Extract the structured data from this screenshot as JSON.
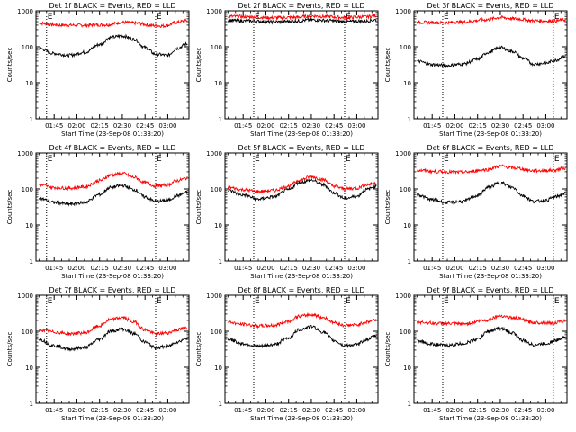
{
  "figure": {
    "xlabel": "Start Time (23-Sep-08 01:33:20)",
    "ylabel": "Counts/sec"
  },
  "chart_data": [
    {
      "type": "line",
      "title": "Det 1f BLACK = Events, RED = LLD",
      "xlabel": "Start Time (23-Sep-08 01:33:20)",
      "ylabel": "Counts/sec",
      "y_scale": "log",
      "ylim": [
        1,
        1000
      ],
      "y_ticks": [
        1,
        10,
        100,
        1000
      ],
      "x_tick_labels": [
        "01:45",
        "02:00",
        "02:15",
        "02:30",
        "02:45",
        "03:00"
      ],
      "x_tick_minutes": [
        105,
        120,
        135,
        150,
        165,
        180
      ],
      "xlim_minutes": [
        93,
        194
      ],
      "vlines_minutes": [
        100,
        172
      ],
      "corner_labels": [
        "E",
        "E"
      ],
      "grid": false,
      "series": [
        {
          "color": "#ff0000",
          "x": [
            95,
            110,
            125,
            140,
            150,
            160,
            170,
            178,
            186,
            193
          ],
          "values": [
            450,
            400,
            400,
            410,
            480,
            450,
            390,
            380,
            480,
            540
          ]
        },
        {
          "color": "#000000",
          "x": [
            95,
            105,
            115,
            125,
            135,
            142,
            150,
            158,
            165,
            172,
            180,
            186,
            193
          ],
          "values": [
            90,
            65,
            58,
            70,
            115,
            180,
            200,
            160,
            95,
            62,
            58,
            90,
            120
          ]
        }
      ]
    },
    {
      "type": "line",
      "title": "Det 2f BLACK = Events, RED = LLD",
      "xlabel": "Start Time (23-Sep-08 01:33:20)",
      "ylabel": "Counts/sec",
      "y_scale": "log",
      "ylim": [
        1,
        1000
      ],
      "y_ticks": [
        1,
        10,
        100,
        1000
      ],
      "x_tick_labels": [
        "01:45",
        "02:00",
        "02:15",
        "02:30",
        "02:45",
        "03:00"
      ],
      "x_tick_minutes": [
        105,
        120,
        135,
        150,
        165,
        180
      ],
      "xlim_minutes": [
        93,
        194
      ],
      "vlines_minutes": [
        112,
        172
      ],
      "corner_labels": [
        "E",
        "E"
      ],
      "grid": false,
      "series": [
        {
          "color": "#ff0000",
          "x": [
            95,
            110,
            125,
            140,
            150,
            160,
            172,
            185,
            193
          ],
          "values": [
            700,
            680,
            640,
            660,
            720,
            690,
            650,
            680,
            730
          ]
        },
        {
          "color": "#000000",
          "x": [
            95,
            110,
            125,
            140,
            150,
            160,
            172,
            185,
            193
          ],
          "values": [
            540,
            520,
            490,
            520,
            560,
            540,
            500,
            520,
            560
          ]
        }
      ]
    },
    {
      "type": "line",
      "title": "Det 3f BLACK = Events, RED = LLD",
      "xlabel": "Start Time (23-Sep-08 01:33:20)",
      "ylabel": "Counts/sec",
      "y_scale": "log",
      "ylim": [
        1,
        1000
      ],
      "y_ticks": [
        1,
        10,
        100,
        1000
      ],
      "x_tick_labels": [
        "01:45",
        "02:00",
        "02:15",
        "02:30",
        "02:45",
        "03:00"
      ],
      "x_tick_minutes": [
        105,
        120,
        135,
        150,
        165,
        180
      ],
      "xlim_minutes": [
        93,
        194
      ],
      "vlines_minutes": [
        112,
        185
      ],
      "corner_labels": [
        "E",
        "E"
      ],
      "grid": false,
      "series": [
        {
          "color": "#ff0000",
          "x": [
            95,
            110,
            125,
            140,
            150,
            160,
            172,
            185,
            193
          ],
          "values": [
            480,
            470,
            490,
            560,
            650,
            600,
            530,
            520,
            560
          ]
        },
        {
          "color": "#000000",
          "x": [
            95,
            105,
            115,
            125,
            135,
            142,
            150,
            158,
            165,
            172,
            180,
            186,
            193
          ],
          "values": [
            40,
            32,
            30,
            33,
            45,
            70,
            95,
            75,
            48,
            33,
            35,
            42,
            55
          ]
        }
      ]
    },
    {
      "type": "line",
      "title": "Det 4f BLACK = Events, RED = LLD",
      "xlabel": "Start Time (23-Sep-08 01:33:20)",
      "ylabel": "Counts/sec",
      "y_scale": "log",
      "ylim": [
        1,
        1000
      ],
      "y_ticks": [
        1,
        10,
        100,
        1000
      ],
      "x_tick_labels": [
        "01:45",
        "02:00",
        "02:15",
        "02:30",
        "02:45",
        "03:00"
      ],
      "x_tick_minutes": [
        105,
        120,
        135,
        150,
        165,
        180
      ],
      "xlim_minutes": [
        93,
        194
      ],
      "vlines_minutes": [
        100,
        172
      ],
      "corner_labels": [
        "E",
        "E"
      ],
      "grid": false,
      "series": [
        {
          "color": "#ff0000",
          "x": [
            95,
            105,
            115,
            125,
            135,
            142,
            150,
            158,
            165,
            172,
            180,
            186,
            193
          ],
          "values": [
            130,
            110,
            105,
            115,
            170,
            240,
            270,
            210,
            150,
            120,
            130,
            170,
            200
          ]
        },
        {
          "color": "#000000",
          "x": [
            95,
            105,
            115,
            125,
            135,
            142,
            150,
            158,
            165,
            172,
            180,
            186,
            193
          ],
          "values": [
            55,
            42,
            38,
            42,
            70,
            110,
            125,
            95,
            60,
            45,
            48,
            65,
            80
          ]
        }
      ]
    },
    {
      "type": "line",
      "title": "Det 5f BLACK = Events, RED = LLD",
      "xlabel": "Start Time (23-Sep-08 01:33:20)",
      "ylabel": "Counts/sec",
      "y_scale": "log",
      "ylim": [
        1,
        1000
      ],
      "y_ticks": [
        1,
        10,
        100,
        1000
      ],
      "x_tick_labels": [
        "01:45",
        "02:00",
        "02:15",
        "02:30",
        "02:45",
        "03:00"
      ],
      "x_tick_minutes": [
        105,
        120,
        135,
        150,
        165,
        180
      ],
      "xlim_minutes": [
        93,
        194
      ],
      "vlines_minutes": [
        112,
        172
      ],
      "corner_labels": [
        "E",
        "E"
      ],
      "grid": false,
      "series": [
        {
          "color": "#ff0000",
          "x": [
            95,
            105,
            115,
            125,
            135,
            142,
            150,
            158,
            165,
            172,
            180,
            186,
            193
          ],
          "values": [
            110,
            95,
            85,
            90,
            120,
            175,
            220,
            180,
            120,
            100,
            105,
            130,
            150
          ]
        },
        {
          "color": "#000000",
          "x": [
            95,
            105,
            115,
            125,
            135,
            142,
            150,
            158,
            165,
            172,
            180,
            186,
            193
          ],
          "values": [
            90,
            68,
            52,
            60,
            95,
            150,
            175,
            130,
            78,
            55,
            62,
            95,
            120
          ]
        }
      ]
    },
    {
      "type": "line",
      "title": "Det 6f BLACK = Events, RED = LLD",
      "xlabel": "Start Time (23-Sep-08 01:33:20)",
      "ylabel": "Counts/sec",
      "y_scale": "log",
      "ylim": [
        1,
        1000
      ],
      "y_ticks": [
        1,
        10,
        100,
        1000
      ],
      "x_tick_labels": [
        "01:45",
        "02:00",
        "02:15",
        "02:30",
        "02:45",
        "03:00"
      ],
      "x_tick_minutes": [
        105,
        120,
        135,
        150,
        165,
        180
      ],
      "xlim_minutes": [
        93,
        194
      ],
      "vlines_minutes": [
        112,
        185
      ],
      "corner_labels": [
        "E",
        "E"
      ],
      "grid": false,
      "series": [
        {
          "color": "#ff0000",
          "x": [
            95,
            110,
            125,
            140,
            150,
            160,
            172,
            185,
            193
          ],
          "values": [
            330,
            300,
            290,
            340,
            430,
            380,
            320,
            330,
            380
          ]
        },
        {
          "color": "#000000",
          "x": [
            95,
            105,
            115,
            125,
            135,
            142,
            150,
            158,
            165,
            172,
            180,
            186,
            193
          ],
          "values": [
            70,
            50,
            42,
            45,
            65,
            110,
            150,
            110,
            65,
            45,
            48,
            60,
            75
          ]
        }
      ]
    },
    {
      "type": "line",
      "title": "Det 7f BLACK = Events, RED = LLD",
      "xlabel": "Start Time (23-Sep-08 01:33:20)",
      "ylabel": "Counts/sec",
      "y_scale": "log",
      "ylim": [
        1,
        1000
      ],
      "y_ticks": [
        1,
        10,
        100,
        1000
      ],
      "x_tick_labels": [
        "01:45",
        "02:00",
        "02:15",
        "02:30",
        "02:45",
        "03:00"
      ],
      "x_tick_minutes": [
        105,
        120,
        135,
        150,
        165,
        180
      ],
      "xlim_minutes": [
        93,
        194
      ],
      "vlines_minutes": [
        100,
        172
      ],
      "corner_labels": [
        "E",
        "E"
      ],
      "grid": false,
      "series": [
        {
          "color": "#ff0000",
          "x": [
            95,
            105,
            115,
            125,
            135,
            142,
            150,
            158,
            165,
            172,
            180,
            186,
            193
          ],
          "values": [
            110,
            95,
            85,
            90,
            140,
            210,
            240,
            180,
            110,
            85,
            90,
            110,
            125
          ]
        },
        {
          "color": "#000000",
          "x": [
            95,
            105,
            115,
            125,
            135,
            142,
            150,
            158,
            165,
            172,
            180,
            186,
            193
          ],
          "values": [
            60,
            40,
            32,
            35,
            60,
            100,
            115,
            85,
            50,
            35,
            38,
            50,
            65
          ]
        }
      ]
    },
    {
      "type": "line",
      "title": "Det 8f BLACK = Events, RED = LLD",
      "xlabel": "Start Time (23-Sep-08 01:33:20)",
      "ylabel": "Counts/sec",
      "y_scale": "log",
      "ylim": [
        1,
        1000
      ],
      "y_ticks": [
        1,
        10,
        100,
        1000
      ],
      "x_tick_labels": [
        "01:45",
        "02:00",
        "02:15",
        "02:30",
        "02:45",
        "03:00"
      ],
      "x_tick_minutes": [
        105,
        120,
        135,
        150,
        165,
        180
      ],
      "xlim_minutes": [
        93,
        194
      ],
      "vlines_minutes": [
        112,
        172
      ],
      "corner_labels": [
        "E",
        "E"
      ],
      "grid": false,
      "series": [
        {
          "color": "#ff0000",
          "x": [
            95,
            105,
            115,
            125,
            135,
            142,
            150,
            158,
            165,
            172,
            180,
            186,
            193
          ],
          "values": [
            180,
            155,
            140,
            145,
            190,
            260,
            290,
            240,
            175,
            145,
            150,
            180,
            210
          ]
        },
        {
          "color": "#000000",
          "x": [
            95,
            105,
            115,
            125,
            135,
            142,
            150,
            158,
            165,
            172,
            180,
            186,
            193
          ],
          "values": [
            60,
            45,
            38,
            42,
            65,
            110,
            135,
            95,
            55,
            40,
            42,
            58,
            75
          ]
        }
      ]
    },
    {
      "type": "line",
      "title": "Det 9f BLACK = Events, RED = LLD",
      "xlabel": "Start Time (23-Sep-08 01:33:20)",
      "ylabel": "Counts/sec",
      "y_scale": "log",
      "ylim": [
        1,
        1000
      ],
      "y_ticks": [
        1,
        10,
        100,
        1000
      ],
      "x_tick_labels": [
        "01:45",
        "02:00",
        "02:15",
        "02:30",
        "02:45",
        "03:00"
      ],
      "x_tick_minutes": [
        105,
        120,
        135,
        150,
        165,
        180
      ],
      "xlim_minutes": [
        93,
        194
      ],
      "vlines_minutes": [
        112,
        185
      ],
      "corner_labels": [
        "E",
        "E"
      ],
      "grid": false,
      "series": [
        {
          "color": "#ff0000",
          "x": [
            95,
            110,
            125,
            140,
            150,
            160,
            172,
            185,
            193
          ],
          "values": [
            180,
            165,
            160,
            200,
            270,
            230,
            175,
            170,
            195
          ]
        },
        {
          "color": "#000000",
          "x": [
            95,
            105,
            115,
            125,
            135,
            142,
            150,
            158,
            165,
            172,
            180,
            186,
            193
          ],
          "values": [
            55,
            44,
            40,
            45,
            60,
            100,
            120,
            90,
            55,
            42,
            45,
            55,
            70
          ]
        }
      ]
    }
  ]
}
